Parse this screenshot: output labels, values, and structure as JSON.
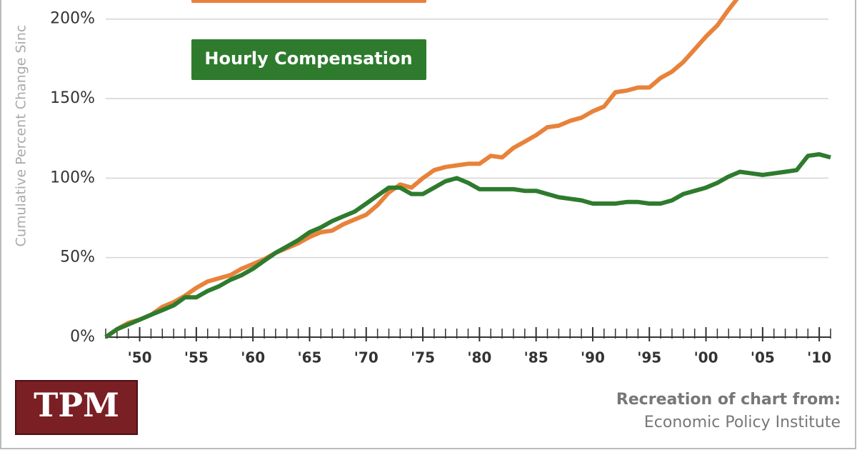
{
  "chart_data": {
    "type": "line",
    "y_label": "Cumulative Percent Change Sinc",
    "x": [
      1947,
      1948,
      1949,
      1950,
      1951,
      1952,
      1953,
      1954,
      1955,
      1956,
      1957,
      1958,
      1959,
      1960,
      1961,
      1962,
      1963,
      1964,
      1965,
      1966,
      1967,
      1968,
      1969,
      1970,
      1971,
      1972,
      1973,
      1974,
      1975,
      1976,
      1977,
      1978,
      1979,
      1980,
      1981,
      1982,
      1983,
      1984,
      1985,
      1986,
      1987,
      1988,
      1989,
      1990,
      1991,
      1992,
      1993,
      1994,
      1995,
      1996,
      1997,
      1998,
      1999,
      2000,
      2001,
      2002,
      2003,
      2004,
      2005,
      2006,
      2007,
      2008,
      2009,
      2010,
      2011
    ],
    "series": [
      {
        "color": "#e8823a",
        "values": [
          0,
          5,
          9,
          11,
          14,
          19,
          22,
          26,
          31,
          35,
          37,
          39,
          43,
          46,
          49,
          53,
          56,
          59,
          63,
          66,
          67,
          71,
          74,
          77,
          83,
          91,
          96,
          94,
          100,
          105,
          107,
          108,
          109,
          109,
          114,
          113,
          119,
          123,
          127,
          132,
          133,
          136,
          138,
          142,
          145,
          154,
          155,
          157,
          157,
          163,
          167,
          173,
          181,
          189,
          196,
          206,
          215,
          null,
          null,
          null,
          null,
          null,
          null,
          null,
          null
        ]
      },
      {
        "name": "Hourly Compensation",
        "color": "#2e7b2e",
        "values": [
          0,
          5,
          8,
          11,
          14,
          17,
          20,
          25,
          25,
          29,
          32,
          36,
          39,
          43,
          48,
          53,
          57,
          61,
          66,
          69,
          73,
          76,
          79,
          84,
          89,
          94,
          94,
          90,
          90,
          94,
          98,
          100,
          97,
          93,
          93,
          93,
          93,
          92,
          92,
          90,
          88,
          87,
          86,
          84,
          84,
          84,
          85,
          85,
          84,
          84,
          86,
          90,
          92,
          94,
          97,
          101,
          104,
          103,
          102,
          103,
          104,
          105,
          114,
          115,
          113
        ]
      }
    ],
    "xlim": [
      1947,
      2011
    ],
    "xticks": [
      {
        "value": 1950,
        "label": "'50"
      },
      {
        "value": 1955,
        "label": "'55"
      },
      {
        "value": 1960,
        "label": "'60"
      },
      {
        "value": 1965,
        "label": "'65"
      },
      {
        "value": 1970,
        "label": "'70"
      },
      {
        "value": 1975,
        "label": "'75"
      },
      {
        "value": 1980,
        "label": "'80"
      },
      {
        "value": 1985,
        "label": "'85"
      },
      {
        "value": 1990,
        "label": "'90"
      },
      {
        "value": 1995,
        "label": "'95"
      },
      {
        "value": 2000,
        "label": "'00"
      },
      {
        "value": 2005,
        "label": "'05"
      },
      {
        "value": 2010,
        "label": "'10"
      }
    ],
    "ylim": [
      0,
      212
    ],
    "yticks": [
      {
        "value": 0,
        "label": "0%"
      },
      {
        "value": 50,
        "label": "50%"
      },
      {
        "value": 100,
        "label": "100%"
      },
      {
        "value": 150,
        "label": "150%"
      },
      {
        "value": 200,
        "label": "200%"
      }
    ],
    "grid": true
  },
  "footer": {
    "logo": "TPM",
    "source_heading": "Recreation of chart from:",
    "source": "Economic Policy Institute"
  }
}
